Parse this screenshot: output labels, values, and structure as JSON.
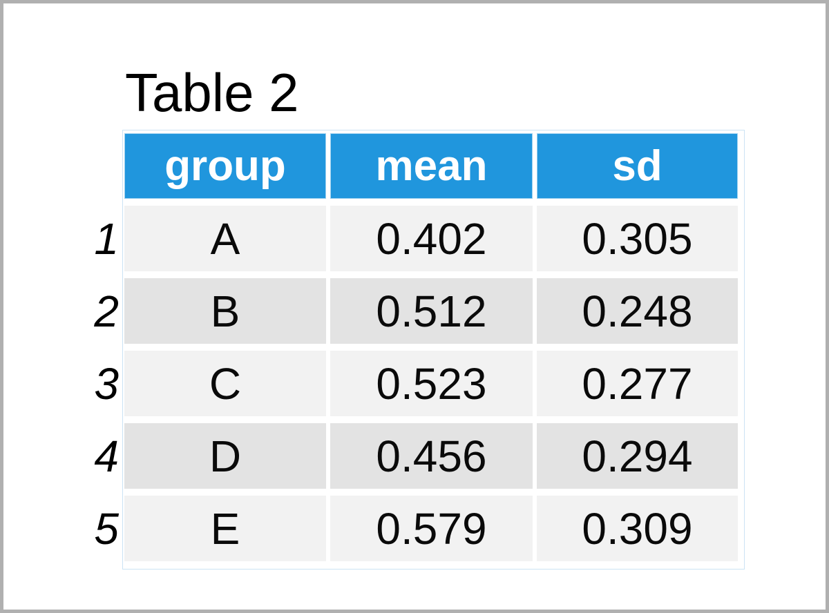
{
  "page": {
    "title": "Table 2"
  },
  "table": {
    "columns": [
      "group",
      "mean",
      "sd"
    ],
    "rows": [
      {
        "index": "1",
        "group": "A",
        "mean": "0.402",
        "sd": "0.305"
      },
      {
        "index": "2",
        "group": "B",
        "mean": "0.512",
        "sd": "0.248"
      },
      {
        "index": "3",
        "group": "C",
        "mean": "0.523",
        "sd": "0.277"
      },
      {
        "index": "4",
        "group": "D",
        "mean": "0.456",
        "sd": "0.294"
      },
      {
        "index": "5",
        "group": "E",
        "mean": "0.579",
        "sd": "0.309"
      }
    ]
  },
  "colors": {
    "header_bg": "#2096DD",
    "header_text": "#FFFFFF",
    "row_light": "#F2F2F2",
    "row_dark": "#E3E3E3",
    "frame_border": "#B0B0B0",
    "table_outline": "#CBE3F4"
  },
  "chart_data": {
    "type": "table",
    "title": "Table 2",
    "columns": [
      "group",
      "mean",
      "sd"
    ],
    "row_indices": [
      "1",
      "2",
      "3",
      "4",
      "5"
    ],
    "rows": [
      [
        "A",
        0.402,
        0.305
      ],
      [
        "B",
        0.512,
        0.248
      ],
      [
        "C",
        0.523,
        0.277
      ],
      [
        "D",
        0.456,
        0.294
      ],
      [
        "E",
        0.579,
        0.309
      ]
    ],
    "layout": {
      "grid": "off",
      "legend": "none",
      "striped_rows": true
    }
  }
}
